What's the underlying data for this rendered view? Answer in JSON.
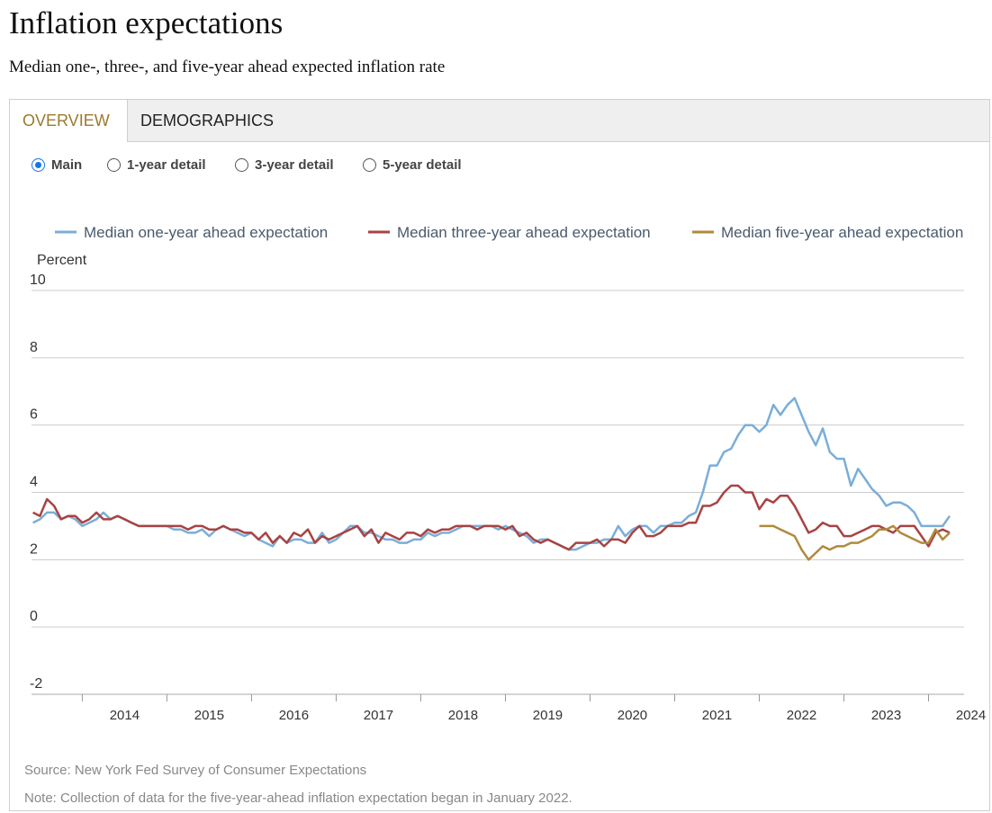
{
  "header": {
    "title": "Inflation expectations",
    "subtitle": "Median one-, three-, and five-year ahead expected inflation rate"
  },
  "tabs": [
    {
      "label": "OVERVIEW",
      "active": true
    },
    {
      "label": "DEMOGRAPHICS",
      "active": false
    }
  ],
  "views": [
    {
      "label": "Main",
      "selected": true
    },
    {
      "label": "1-year detail",
      "selected": false
    },
    {
      "label": "3-year detail",
      "selected": false
    },
    {
      "label": "5-year detail",
      "selected": false
    }
  ],
  "footer": {
    "source": "Source: New York Fed Survey of Consumer Expectations",
    "note": "Note: Collection of data for the five-year-ahead inflation expectation began in January 2022."
  },
  "chart_data": {
    "type": "line",
    "ylabel": "Percent",
    "ylim": [
      -2,
      10
    ],
    "yticks": [
      10,
      8,
      6,
      4,
      2,
      0,
      -2
    ],
    "xlim": [
      2013.4,
      2024.42
    ],
    "xticks": [
      "2014",
      "2015",
      "2016",
      "2017",
      "2018",
      "2019",
      "2020",
      "2021",
      "2022",
      "2023",
      "2024"
    ],
    "grid": "horizontal",
    "legend_position": "top",
    "series": [
      {
        "name": "Median one-year ahead expectation",
        "color": "#7aaed9",
        "start": "2013-06",
        "values": [
          3.1,
          3.2,
          3.4,
          3.4,
          3.2,
          3.3,
          3.2,
          3.0,
          3.1,
          3.2,
          3.4,
          3.2,
          3.3,
          3.2,
          3.1,
          3.0,
          3.0,
          3.0,
          3.0,
          3.0,
          2.9,
          2.9,
          2.8,
          2.8,
          2.9,
          2.7,
          2.9,
          3.0,
          2.9,
          2.8,
          2.7,
          2.8,
          2.6,
          2.5,
          2.4,
          2.7,
          2.5,
          2.6,
          2.6,
          2.5,
          2.5,
          2.8,
          2.5,
          2.6,
          2.8,
          3.0,
          3.0,
          2.8,
          2.8,
          2.7,
          2.6,
          2.6,
          2.5,
          2.5,
          2.6,
          2.6,
          2.8,
          2.7,
          2.8,
          2.8,
          2.9,
          3.0,
          3.0,
          3.0,
          3.0,
          3.0,
          2.9,
          3.0,
          2.9,
          2.8,
          2.7,
          2.5,
          2.6,
          2.6,
          2.5,
          2.4,
          2.3,
          2.3,
          2.4,
          2.5,
          2.5,
          2.6,
          2.6,
          3.0,
          2.7,
          2.9,
          3.0,
          3.0,
          2.8,
          3.0,
          3.0,
          3.1,
          3.1,
          3.3,
          3.4,
          4.0,
          4.8,
          4.8,
          5.2,
          5.3,
          5.7,
          6.0,
          6.0,
          5.8,
          6.0,
          6.6,
          6.3,
          6.6,
          6.8,
          6.3,
          5.8,
          5.4,
          5.9,
          5.2,
          5.0,
          5.0,
          4.2,
          4.7,
          4.4,
          4.1,
          3.9,
          3.6,
          3.7,
          3.7,
          3.6,
          3.4,
          3.0,
          3.0,
          3.0,
          3.0,
          3.3
        ]
      },
      {
        "name": "Median three-year ahead expectation",
        "color": "#a84343",
        "start": "2013-06",
        "values": [
          3.4,
          3.3,
          3.8,
          3.6,
          3.2,
          3.3,
          3.3,
          3.1,
          3.2,
          3.4,
          3.2,
          3.2,
          3.3,
          3.2,
          3.1,
          3.0,
          3.0,
          3.0,
          3.0,
          3.0,
          3.0,
          3.0,
          2.9,
          3.0,
          3.0,
          2.9,
          2.9,
          3.0,
          2.9,
          2.9,
          2.8,
          2.8,
          2.6,
          2.8,
          2.5,
          2.7,
          2.5,
          2.8,
          2.7,
          2.9,
          2.5,
          2.7,
          2.6,
          2.7,
          2.8,
          2.9,
          3.0,
          2.7,
          2.9,
          2.5,
          2.8,
          2.7,
          2.6,
          2.8,
          2.8,
          2.7,
          2.9,
          2.8,
          2.9,
          2.9,
          3.0,
          3.0,
          3.0,
          2.9,
          3.0,
          3.0,
          3.0,
          2.9,
          3.0,
          2.7,
          2.8,
          2.6,
          2.5,
          2.6,
          2.5,
          2.4,
          2.3,
          2.5,
          2.5,
          2.5,
          2.6,
          2.4,
          2.6,
          2.6,
          2.5,
          2.8,
          3.0,
          2.7,
          2.7,
          2.8,
          3.0,
          3.0,
          3.0,
          3.1,
          3.1,
          3.6,
          3.6,
          3.7,
          4.0,
          4.2,
          4.2,
          4.0,
          4.0,
          3.5,
          3.8,
          3.7,
          3.9,
          3.9,
          3.6,
          3.2,
          2.8,
          2.9,
          3.1,
          3.0,
          3.0,
          2.7,
          2.7,
          2.8,
          2.9,
          3.0,
          3.0,
          2.9,
          2.8,
          3.0,
          3.0,
          3.0,
          2.7,
          2.4,
          2.8,
          2.9,
          2.8
        ]
      },
      {
        "name": "Median five-year ahead expectation",
        "color": "#b08a3c",
        "start": "2022-01",
        "values": [
          3.0,
          3.0,
          3.0,
          2.9,
          2.8,
          2.7,
          2.3,
          2.0,
          2.2,
          2.4,
          2.3,
          2.4,
          2.4,
          2.5,
          2.5,
          2.6,
          2.7,
          2.9,
          2.9,
          3.0,
          2.8,
          2.7,
          2.6,
          2.5,
          2.5,
          2.9,
          2.6,
          2.8
        ]
      }
    ]
  }
}
